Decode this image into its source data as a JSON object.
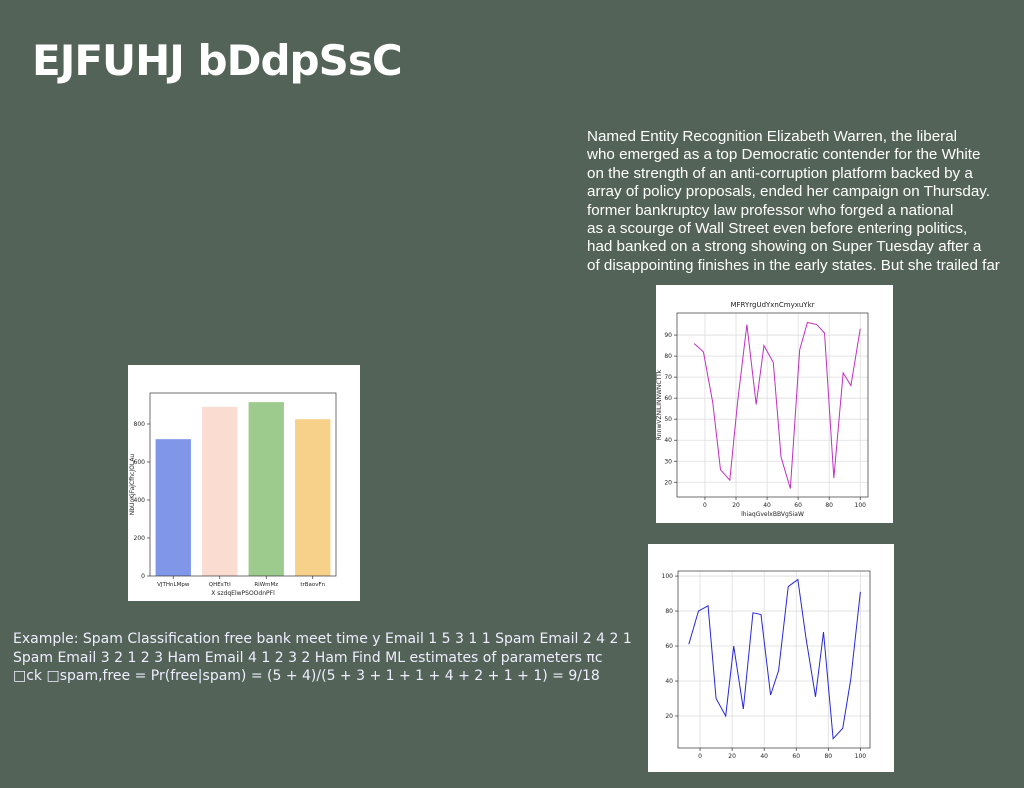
{
  "header": {
    "title": "EJFUHJ bDdpSsC"
  },
  "right_text": [
    "Named Entity Recognition Elizabeth Warren, the liberal",
    "who emerged as a top Democratic contender for the White",
    "on the strength of an anti-corruption platform backed by a",
    "array of policy proposals, ended her campaign on Thursday.",
    "former bankruptcy law professor who forged a national",
    "as a scourge of Wall Street even before entering politics,",
    "had banked on a strong showing on Super Tuesday after a",
    "of disappointing finishes in the early states. But she trailed far"
  ],
  "left_text": [
    "Example: Spam Classification free bank meet time y Email 1 5 3 1 1 Spam Email 2 4 2 1",
    "Spam Email 3 2 1 2 3 Ham Email 4 1 2 3 2 Ham Find ML estimates of parameters πc",
    "□ck □spam,free = Pr(free|spam) = (5 + 4)/(5 + 3 + 1 + 1 + 4 + 2 + 1 + 1) = 9/18"
  ],
  "chart_data": [
    {
      "type": "bar",
      "xlabel": "X szdqElwPSOOdnPFl",
      "ylabel": "NbUoKjFajCfhcJOLAu",
      "categories": [
        "VJTHnLMpw",
        "QHEsTtI",
        "RiWmMz",
        "trBaovFn"
      ],
      "values": [
        720,
        890,
        915,
        825
      ],
      "colors": [
        "#8096e8",
        "#fbdcd0",
        "#9dcb8e",
        "#f7d089"
      ],
      "ylim": [
        0,
        963
      ],
      "yticks": [
        0,
        200,
        400,
        600,
        800
      ],
      "grid": false
    },
    {
      "type": "line",
      "title": "MFRYrgUdYxnCmyxuYkr",
      "xlabel": "lhiaqGvelxBBVgSiaW",
      "ylabel": "RnnwVZNILINNWNCTTk",
      "x": [
        -7,
        -1,
        5,
        10,
        16,
        21,
        27,
        33,
        38,
        44,
        49,
        55,
        61,
        66,
        72,
        77,
        83,
        89,
        94,
        100
      ],
      "values": [
        86,
        82,
        58,
        26,
        21,
        58,
        95,
        57,
        85,
        77,
        32,
        17,
        83,
        96,
        95,
        91,
        22,
        72,
        66,
        93
      ],
      "color": "#c030c0",
      "xlim": [
        -18,
        105
      ],
      "ylim": [
        13,
        100.5
      ],
      "xticks": [
        0,
        20,
        40,
        60,
        80,
        100
      ],
      "yticks": [
        20,
        30,
        40,
        50,
        60,
        70,
        80,
        90
      ],
      "grid": true
    },
    {
      "type": "line",
      "x": [
        -7,
        -1,
        5,
        10,
        16,
        21,
        27,
        33,
        38,
        44,
        49,
        55,
        61,
        66,
        72,
        77,
        83,
        89,
        94,
        100
      ],
      "values": [
        61,
        80,
        83,
        30,
        20,
        60,
        24,
        79,
        78,
        32,
        46,
        94,
        98,
        65,
        31,
        68,
        7,
        13,
        41,
        91
      ],
      "color": "#2828d8",
      "xlim": [
        -13.75,
        106
      ],
      "ylim": [
        1.7,
        102.9
      ],
      "xticks": [
        0,
        20,
        40,
        60,
        80,
        100
      ],
      "yticks": [
        20,
        40,
        60,
        80,
        100
      ],
      "grid": true
    }
  ]
}
